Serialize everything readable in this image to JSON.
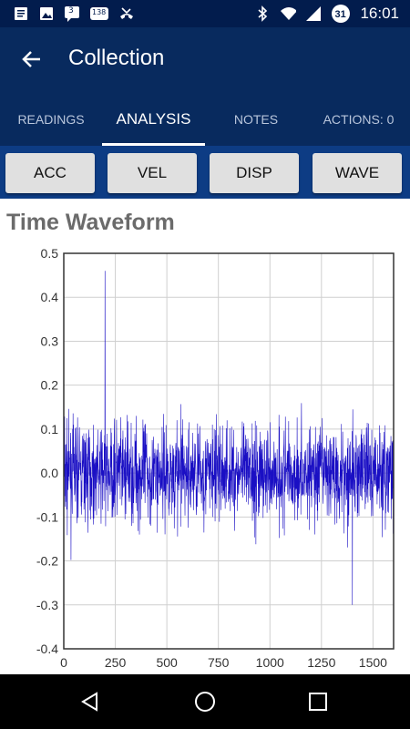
{
  "status_bar": {
    "time": "16:01",
    "calendar_badge": "31",
    "notif_badge_1": "3",
    "notif_badge_2": "138",
    "icons": [
      "notes-icon",
      "image-icon",
      "message-icon",
      "news-icon",
      "missed-call-icon",
      "bluetooth-icon",
      "wifi-icon",
      "signal-icon",
      "battery-icon"
    ]
  },
  "app_bar": {
    "title": "Collection"
  },
  "tabs": [
    {
      "label": "READINGS"
    },
    {
      "label": "ANALYSIS"
    },
    {
      "label": "NOTES"
    },
    {
      "label": "ACTIONS: 0"
    }
  ],
  "mode_buttons": [
    {
      "label": "ACC"
    },
    {
      "label": "VEL"
    },
    {
      "label": "DISP"
    },
    {
      "label": "WAVE"
    }
  ],
  "chart_title": "Time Waveform",
  "colors": {
    "status_bar": "#021c4d",
    "app_bar": "#082a5e",
    "mode_bar": "#0d3c84",
    "series": "#1a0fc4"
  },
  "chart_data": {
    "type": "line",
    "title": "Time Waveform",
    "xlabel": "",
    "ylabel": "",
    "xlim": [
      0,
      1600
    ],
    "ylim": [
      -0.4,
      0.5
    ],
    "x_ticks": [
      "0",
      "250",
      "500",
      "750",
      "1000",
      "1250",
      "1500"
    ],
    "y_ticks": [
      "0.5",
      "0.4",
      "0.3",
      "0.2",
      "0.1",
      "0.0",
      "-0.1",
      "-0.2",
      "-0.3",
      "-0.4"
    ],
    "grid": true,
    "series": [
      {
        "color": "#1a0fc4",
        "points": 1600,
        "mean": 0.0,
        "typical_amplitude": 0.1,
        "max": 0.46,
        "max_at_x": 200,
        "min": -0.3,
        "min_at_x": 1400
      }
    ]
  }
}
